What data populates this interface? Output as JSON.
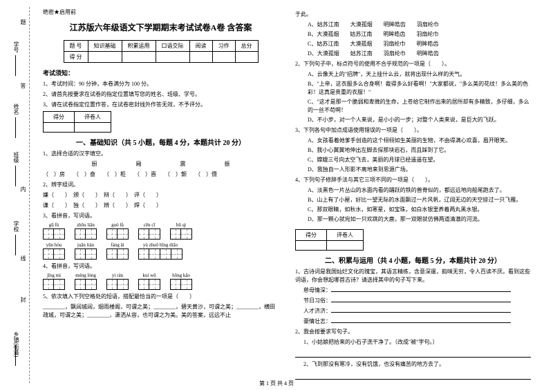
{
  "margin_labels": [
    "学号",
    "姓名",
    "班级",
    "学校",
    "乡镇(街道)"
  ],
  "margin_marks": [
    "题",
    "答",
    "内",
    "线",
    "封"
  ],
  "header_small": "绝密★启用前",
  "title": "江苏版六年级语文下学期期末考试试卷A卷 含答案",
  "score_headers": [
    "题 号",
    "知识基础",
    "积累运用",
    "口语交际",
    "阅读",
    "习作",
    "总分"
  ],
  "score_row": "得 分",
  "exam_notice_hdr": "考试须知：",
  "notices": [
    "1、考试时间：90 分钟，本卷满分为 100 分。",
    "2、请首先按要求在试卷的指定位置填写您的姓名、班级、学号。",
    "3、请在试卷指定位置作答，在试卷密封线外作答无效，不予评分。"
  ],
  "score_box_hdr": [
    "得分",
    "评卷人"
  ],
  "section1_title": "一、基础知识（共 5 小题，每题 4 分，本题共计 20 分）",
  "q1": "1、选择合适的汉字填空。",
  "q1_chars": "厨　　　　　　　厢　　　　　　　震　　　　　　　振",
  "q1_line": "（　）房　　（　）奋　　（　）柜　　（　）晋　　（　）颤　　（　）慑",
  "q2": "2、辨字组词。",
  "q2_line1": "嫌（　　）　颁（　　）　辩（　　）　评（　　）",
  "q2_line2": "谦（　　）　独（　　）　辨（　　）　焊（　　）",
  "q3": "3、看拼音，写词语。",
  "pinyin_rows": [
    [
      {
        "py": "gū fù",
        "n": 2
      },
      {
        "py": "zhōu liǎn",
        "n": 2
      },
      {
        "py": "guò lǜ",
        "n": 2
      },
      {
        "py": "cēn cī",
        "n": 2
      },
      {
        "py": "bǔ qì",
        "n": 2
      }
    ],
    [
      {
        "py": "yūn hòu",
        "n": 2
      },
      {
        "py": "juān liàn",
        "n": 2
      },
      {
        "py": "fáng āi",
        "n": 2
      },
      {
        "py": "yù zhuō bīng diāo",
        "n": 4
      }
    ]
  ],
  "q4": "4、看拼音，写词语。",
  "pinyin_rows2": [
    [
      {
        "py": "jīng mì",
        "n": 2
      },
      {
        "py": "méng lóng",
        "n": 2
      },
      {
        "py": "yì rán",
        "n": 2
      },
      {
        "py": "kuí wǔ",
        "n": 2
      },
      {
        "py": "hōng kǎo",
        "n": 2
      }
    ]
  ],
  "q5": "5、依次填入下列空格处的短语，搭配最恰当的一项是（　　）",
  "q5_text": "________，飘闼城闼，烟雨楼阁，可谓之美；________，碧天黄沙，可谓之美；________，横田疏城，可谓之美；________，潇洒从容，也可谓之为美。美的答案，远远不止",
  "right_top": "于此。",
  "right_opts": [
    "A、姑苏江南　　大漠孤烟　　明眸皓齿　　羽扇纶巾",
    "B、大漠孤烟　　姑苏江南　　明眸皓齿　　羽扇纶巾",
    "C、姑苏江南　　大漠孤烟　　羽扇纶巾　　明眸皓齿",
    "D、大漠孤烟　　姑苏江南　　羽扇纶巾　　明眸皓齿"
  ],
  "q6": "2、下列句子中，标点符号的使用不合乎规范的一项是（　　）。",
  "q6_opts": [
    "A、云像天上的\"招牌\"，天上挂什么云，就将出现什么样的天气。",
    "B、\"上帝，这衣服多么合身啊！裁得多么好看啊！\"大家都说，\"多么美的花纹！多么美的色彩！这真是贵重的衣服！\"",
    "C、\"这才是那一个脆弱和卑微的生命，上苍给它制作出来的居所却有多精致，多仔细，多么的一丝不苟啊！",
    "D、不小步，对一个人来说，是小小的一步；对整个人类来说，是巨大的飞跃。"
  ],
  "q7": "3、下列各句中加点成语使用错误的一项是（　　）。",
  "q7_opts": [
    "A、女孩看着她爹手创造的这个栩栩如生美丽的生物，不由得满心欢喜，眉开眼笑。",
    "B、我小心翼翼地伸出左脚去探那块岩石，而且踩到了它。",
    "C、嫦娥三号向太空飞去，美丽的月球已经遥遥在望。",
    "D、我独自一人形影不离地来到思源广场。"
  ],
  "q8": "4、下列句子修辞手法与其它三项不同的一项是（　　）。",
  "q8_opts": [
    "A、淡黑色一片丛山的水面内看的踊跃的铁的兽脊似的，都远远地向船尾跑去了。",
    "B、山上有了小屋，好比一望无际的水面飘过一片风帆，辽阔无边的天空掠过一只飞雁。",
    "C、那双眼睛，如秋水，如寒星，如宝珠，如白水银里养着两丸黑水银。",
    "D、那一颗心就宛如一只欢跳的大鹿，那一双眼就仿佛两道清澈的河流。"
  ],
  "section2_title": "二、积累与运用（共 4 小题，每题 5 分，本题共计 20 分）",
  "s2_q1": "1、古诗词是我国灿烂文化的瑰宝，其语言精练，含意深邃，韵味无穷，令人百读不厌。看到这些词语，你会想起哪首古诗？请选择其中的句子写下来。",
  "s2_lines": [
    "慈母情深：",
    "节日习俗：",
    "人才济济：",
    "豪情壮志："
  ],
  "s2_q2": "2、我会按要求写句子。",
  "s2_q2_1": "1、小姑娘把拾来的小石子洗干净了。（改成\"被\"字句。）",
  "s2_q2_2": "2、飞到那没有寒冷，没有饥饿，也没有痛苦的地方去了。",
  "footer": "第 1 页 共 4 页"
}
